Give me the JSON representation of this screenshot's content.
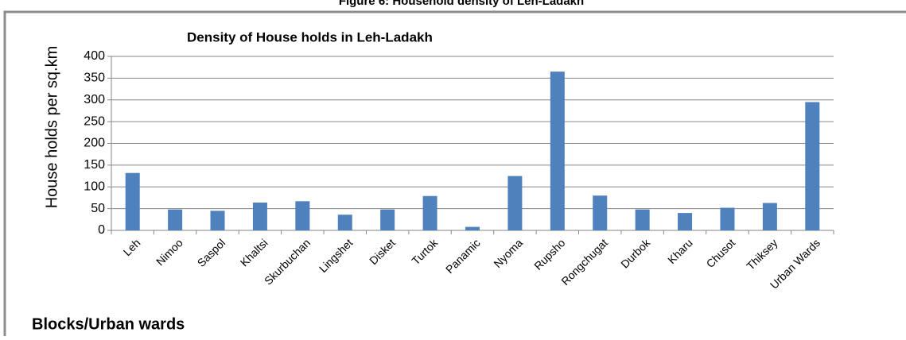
{
  "chart_data": {
    "type": "bar",
    "caption": "Figure 6: Household density of Leh-Ladakh",
    "title": "Density of  House holds in Leh-Ladakh",
    "y_label": "House holds per sq.km",
    "x_label": "Blocks/Urban wards",
    "categories": [
      "Leh",
      "Nimoo",
      "Saspol",
      "Khaltsi",
      "Skurbuchan",
      "Lingshet",
      "Disket",
      "Turtok",
      "Panamic",
      "Nyoma",
      "Rupsho",
      "Rongchugat",
      "Durbok",
      "Kharu",
      "Chusot",
      "Thiksey",
      "Urban Wards"
    ],
    "values": [
      132,
      48,
      45,
      64,
      67,
      36,
      48,
      79,
      8,
      125,
      365,
      80,
      48,
      40,
      52,
      63,
      295
    ],
    "color": "#4f81bd",
    "ylim": [
      0,
      400
    ],
    "yticks": [
      0,
      50,
      100,
      150,
      200,
      250,
      300,
      350,
      400
    ],
    "grid": true
  }
}
